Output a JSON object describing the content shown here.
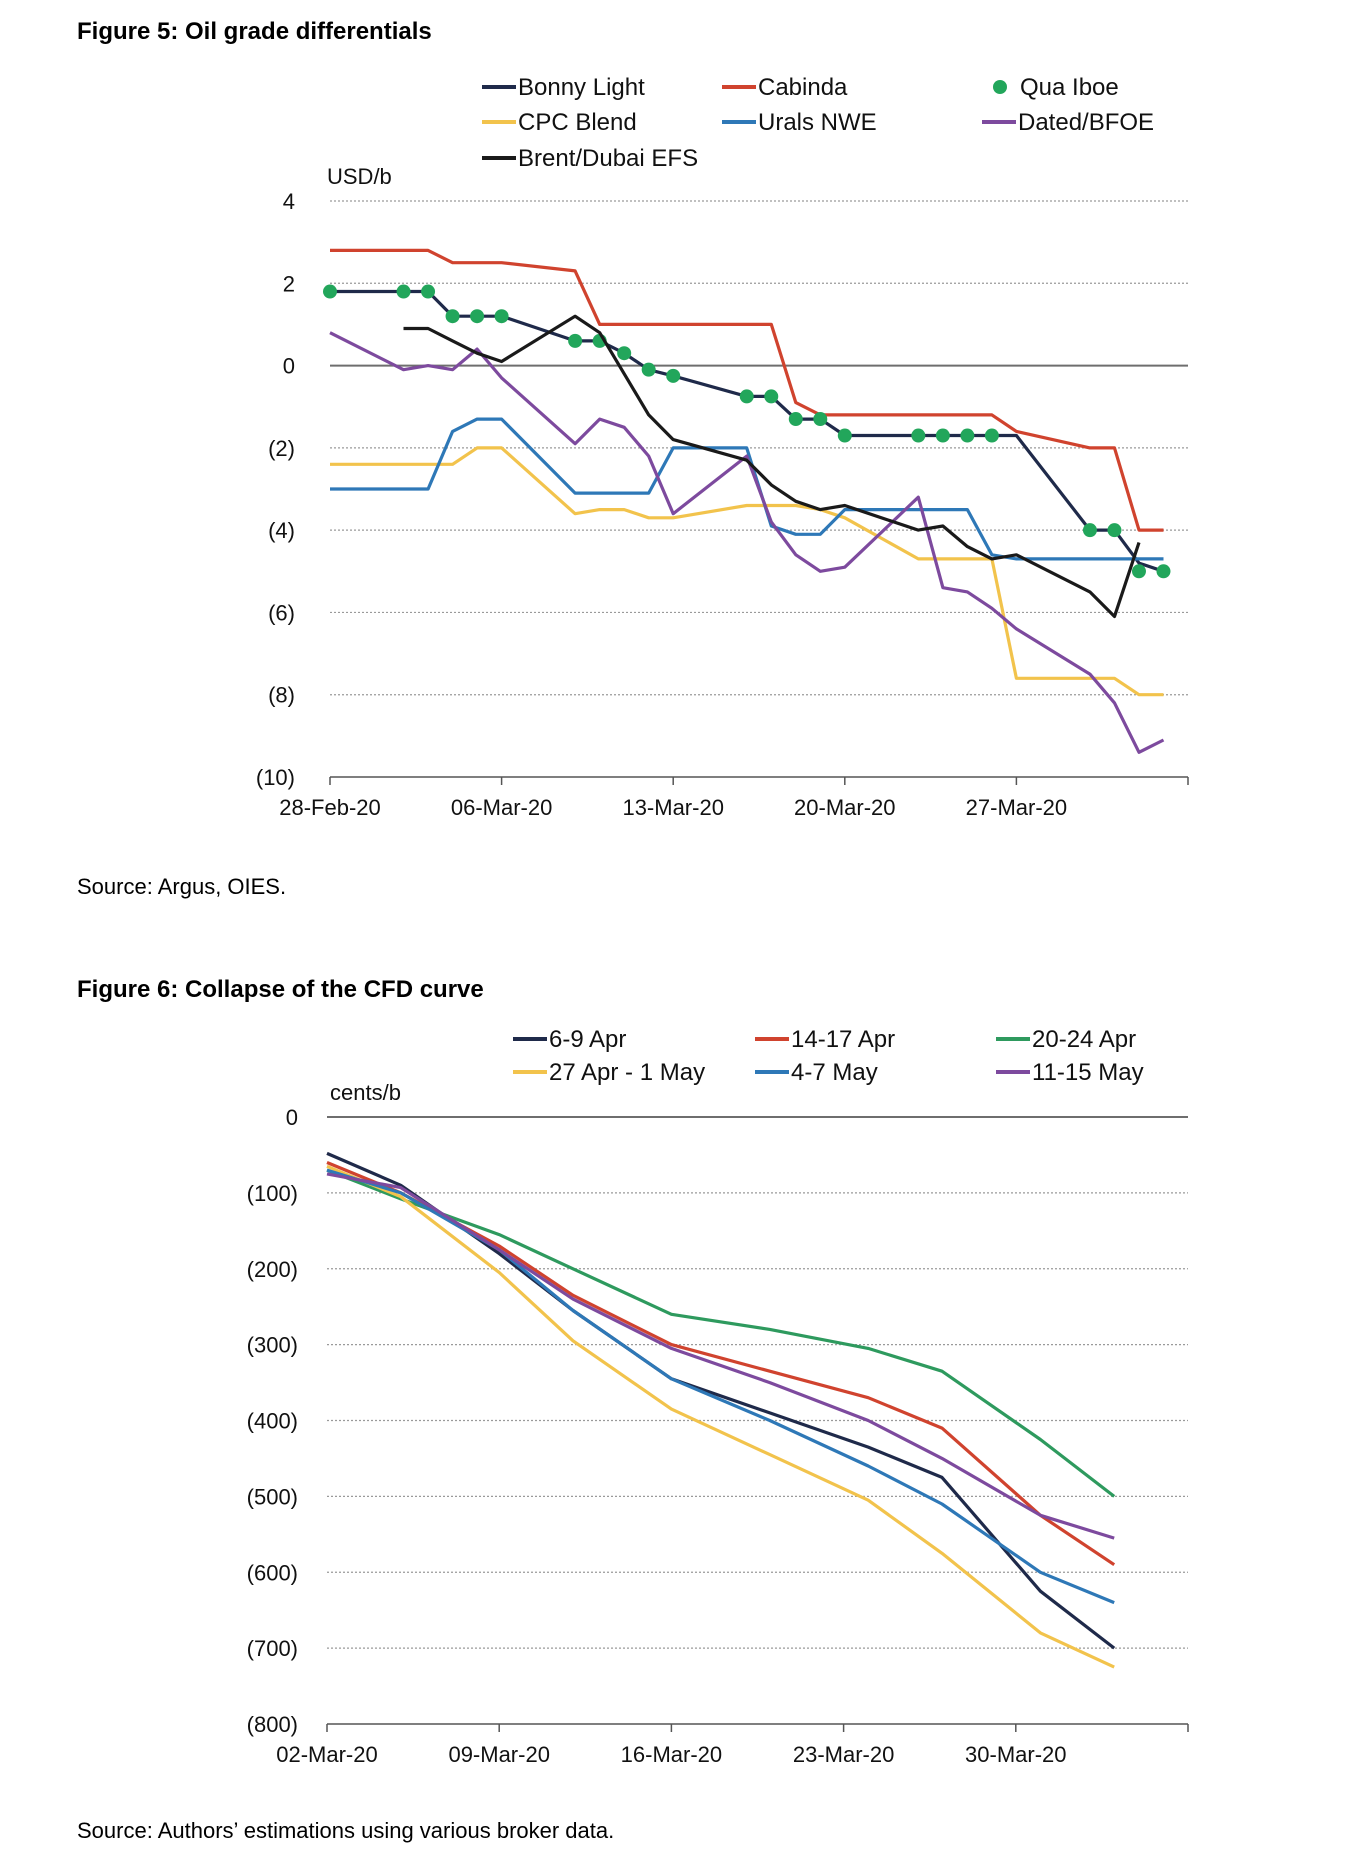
{
  "figures": [
    {
      "title": "Figure 5: Oil grade differentials",
      "source": "Source: Argus, OIES."
    },
    {
      "title": "Figure 6: Collapse of the CFD curve",
      "source": "Source: Authors’ estimations using various broker data."
    }
  ],
  "chart_data": [
    {
      "type": "line",
      "title": "Figure 5: Oil grade differentials",
      "ylabel": "USD/b",
      "ylim": [
        -10,
        4
      ],
      "y_ticks": [
        4,
        2,
        0,
        -2,
        -4,
        -6,
        -8,
        -10
      ],
      "y_tick_labels": [
        "4",
        "2",
        "0",
        "(2)",
        "(4)",
        "(6)",
        "(8)",
        "(10)"
      ],
      "x_ticks": [
        "2020-02-28",
        "2020-03-06",
        "2020-03-13",
        "2020-03-20",
        "2020-03-27"
      ],
      "x_tick_labels": [
        "28-Feb-20",
        "06-Mar-20",
        "13-Mar-20",
        "20-Mar-20",
        "27-Mar-20"
      ],
      "xlim": [
        "2020-02-28",
        "2020-04-03"
      ],
      "grid": "dotted horizontal",
      "legend": "top",
      "series": [
        {
          "name": "Bonny Light",
          "color": "#1f2a4a",
          "style": "line",
          "points": [
            [
              "2020-02-28",
              1.8
            ],
            [
              "2020-03-03",
              1.8
            ],
            [
              "2020-03-04",
              1.2
            ],
            [
              "2020-03-05",
              1.2
            ],
            [
              "2020-03-06",
              1.2
            ],
            [
              "2020-03-09",
              0.6
            ],
            [
              "2020-03-10",
              0.6
            ],
            [
              "2020-03-11",
              0.3
            ],
            [
              "2020-03-12",
              -0.1
            ],
            [
              "2020-03-13",
              -0.25
            ],
            [
              "2020-03-16",
              -0.75
            ],
            [
              "2020-03-17",
              -0.75
            ],
            [
              "2020-03-18",
              -1.3
            ],
            [
              "2020-03-19",
              -1.3
            ],
            [
              "2020-03-20",
              -1.7
            ],
            [
              "2020-03-23",
              -1.7
            ],
            [
              "2020-03-24",
              -1.7
            ],
            [
              "2020-03-25",
              -1.7
            ],
            [
              "2020-03-26",
              -1.7
            ],
            [
              "2020-03-27",
              -1.7
            ],
            [
              "2020-03-30",
              -4.0
            ],
            [
              "2020-03-31",
              -4.0
            ],
            [
              "2020-04-01",
              -4.8
            ],
            [
              "2020-04-02",
              -5.0
            ]
          ]
        },
        {
          "name": "Cabinda",
          "color": "#d0432e",
          "style": "line",
          "points": [
            [
              "2020-02-28",
              2.8
            ],
            [
              "2020-03-03",
              2.8
            ],
            [
              "2020-03-04",
              2.5
            ],
            [
              "2020-03-06",
              2.5
            ],
            [
              "2020-03-09",
              2.3
            ],
            [
              "2020-03-10",
              1.0
            ],
            [
              "2020-03-17",
              1.0
            ],
            [
              "2020-03-18",
              -0.9
            ],
            [
              "2020-03-19",
              -1.2
            ],
            [
              "2020-03-26",
              -1.2
            ],
            [
              "2020-03-27",
              -1.6
            ],
            [
              "2020-03-30",
              -2.0
            ],
            [
              "2020-03-31",
              -2.0
            ],
            [
              "2020-04-01",
              -4.0
            ],
            [
              "2020-04-02",
              -4.0
            ]
          ]
        },
        {
          "name": "Qua Iboe",
          "color": "#22a65b",
          "style": "markers",
          "points": [
            [
              "2020-02-28",
              1.8
            ],
            [
              "2020-03-02",
              1.8
            ],
            [
              "2020-03-03",
              1.8
            ],
            [
              "2020-03-04",
              1.2
            ],
            [
              "2020-03-05",
              1.2
            ],
            [
              "2020-03-06",
              1.2
            ],
            [
              "2020-03-09",
              0.6
            ],
            [
              "2020-03-10",
              0.6
            ],
            [
              "2020-03-11",
              0.3
            ],
            [
              "2020-03-12",
              -0.1
            ],
            [
              "2020-03-13",
              -0.25
            ],
            [
              "2020-03-16",
              -0.75
            ],
            [
              "2020-03-17",
              -0.75
            ],
            [
              "2020-03-18",
              -1.3
            ],
            [
              "2020-03-19",
              -1.3
            ],
            [
              "2020-03-20",
              -1.7
            ],
            [
              "2020-03-23",
              -1.7
            ],
            [
              "2020-03-24",
              -1.7
            ],
            [
              "2020-03-25",
              -1.7
            ],
            [
              "2020-03-26",
              -1.7
            ],
            [
              "2020-03-30",
              -4.0
            ],
            [
              "2020-03-31",
              -4.0
            ],
            [
              "2020-04-01",
              -5.0
            ],
            [
              "2020-04-02",
              -5.0
            ]
          ]
        },
        {
          "name": "CPC Blend",
          "color": "#f2c34c",
          "style": "line",
          "points": [
            [
              "2020-02-28",
              -2.4
            ],
            [
              "2020-03-03",
              -2.4
            ],
            [
              "2020-03-04",
              -2.4
            ],
            [
              "2020-03-05",
              -2.0
            ],
            [
              "2020-03-06",
              -2.0
            ],
            [
              "2020-03-09",
              -3.6
            ],
            [
              "2020-03-10",
              -3.5
            ],
            [
              "2020-03-11",
              -3.5
            ],
            [
              "2020-03-12",
              -3.7
            ],
            [
              "2020-03-13",
              -3.7
            ],
            [
              "2020-03-16",
              -3.4
            ],
            [
              "2020-03-17",
              -3.4
            ],
            [
              "2020-03-18",
              -3.4
            ],
            [
              "2020-03-19",
              -3.5
            ],
            [
              "2020-03-20",
              -3.7
            ],
            [
              "2020-03-23",
              -4.7
            ],
            [
              "2020-03-24",
              -4.7
            ],
            [
              "2020-03-25",
              -4.7
            ],
            [
              "2020-03-26",
              -4.7
            ],
            [
              "2020-03-27",
              -7.6
            ],
            [
              "2020-03-30",
              -7.6
            ],
            [
              "2020-03-31",
              -7.6
            ],
            [
              "2020-04-01",
              -8.0
            ],
            [
              "2020-04-02",
              -8.0
            ]
          ]
        },
        {
          "name": "Urals NWE",
          "color": "#2e78b7",
          "style": "line",
          "points": [
            [
              "2020-02-28",
              -3.0
            ],
            [
              "2020-03-03",
              -3.0
            ],
            [
              "2020-03-04",
              -1.6
            ],
            [
              "2020-03-05",
              -1.3
            ],
            [
              "2020-03-06",
              -1.3
            ],
            [
              "2020-03-09",
              -3.1
            ],
            [
              "2020-03-10",
              -3.1
            ],
            [
              "2020-03-11",
              -3.1
            ],
            [
              "2020-03-12",
              -3.1
            ],
            [
              "2020-03-13",
              -2.0
            ],
            [
              "2020-03-16",
              -2.0
            ],
            [
              "2020-03-17",
              -3.9
            ],
            [
              "2020-03-18",
              -4.1
            ],
            [
              "2020-03-19",
              -4.1
            ],
            [
              "2020-03-20",
              -3.5
            ],
            [
              "2020-03-23",
              -3.5
            ],
            [
              "2020-03-24",
              -3.5
            ],
            [
              "2020-03-25",
              -3.5
            ],
            [
              "2020-03-26",
              -4.6
            ],
            [
              "2020-03-27",
              -4.7
            ],
            [
              "2020-03-30",
              -4.7
            ],
            [
              "2020-03-31",
              -4.7
            ],
            [
              "2020-04-01",
              -4.7
            ],
            [
              "2020-04-02",
              -4.7
            ]
          ]
        },
        {
          "name": "Dated/BFOE",
          "color": "#7d4a9e",
          "style": "line",
          "points": [
            [
              "2020-02-28",
              0.8
            ],
            [
              "2020-03-02",
              -0.1
            ],
            [
              "2020-03-03",
              0.0
            ],
            [
              "2020-03-04",
              -0.1
            ],
            [
              "2020-03-05",
              0.4
            ],
            [
              "2020-03-06",
              -0.3
            ],
            [
              "2020-03-09",
              -1.9
            ],
            [
              "2020-03-10",
              -1.3
            ],
            [
              "2020-03-11",
              -1.5
            ],
            [
              "2020-03-12",
              -2.2
            ],
            [
              "2020-03-13",
              -3.6
            ],
            [
              "2020-03-16",
              -2.2
            ],
            [
              "2020-03-17",
              -3.8
            ],
            [
              "2020-03-18",
              -4.6
            ],
            [
              "2020-03-19",
              -5.0
            ],
            [
              "2020-03-20",
              -4.9
            ],
            [
              "2020-03-23",
              -3.2
            ],
            [
              "2020-03-24",
              -5.4
            ],
            [
              "2020-03-25",
              -5.5
            ],
            [
              "2020-03-26",
              -5.9
            ],
            [
              "2020-03-27",
              -6.4
            ],
            [
              "2020-03-30",
              -7.5
            ],
            [
              "2020-03-31",
              -8.2
            ],
            [
              "2020-04-01",
              -9.4
            ],
            [
              "2020-04-02",
              -9.1
            ]
          ]
        },
        {
          "name": "Brent/Dubai EFS",
          "color": "#1a1a1a",
          "style": "line",
          "points": [
            [
              "2020-03-02",
              0.9
            ],
            [
              "2020-03-03",
              0.9
            ],
            [
              "2020-03-04",
              0.6
            ],
            [
              "2020-03-05",
              0.3
            ],
            [
              "2020-03-06",
              0.1
            ],
            [
              "2020-03-09",
              1.2
            ],
            [
              "2020-03-10",
              0.8
            ],
            [
              "2020-03-11",
              -0.2
            ],
            [
              "2020-03-12",
              -1.2
            ],
            [
              "2020-03-13",
              -1.8
            ],
            [
              "2020-03-16",
              -2.3
            ],
            [
              "2020-03-17",
              -2.9
            ],
            [
              "2020-03-18",
              -3.3
            ],
            [
              "2020-03-19",
              -3.5
            ],
            [
              "2020-03-20",
              -3.4
            ],
            [
              "2020-03-23",
              -4.0
            ],
            [
              "2020-03-24",
              -3.9
            ],
            [
              "2020-03-25",
              -4.4
            ],
            [
              "2020-03-26",
              -4.7
            ],
            [
              "2020-03-27",
              -4.6
            ],
            [
              "2020-03-30",
              -5.5
            ],
            [
              "2020-03-31",
              -6.1
            ],
            [
              "2020-04-01",
              -4.3
            ]
          ]
        }
      ]
    },
    {
      "type": "line",
      "title": "Figure 6: Collapse of the CFD curve",
      "ylabel": "cents/b",
      "ylim": [
        -800,
        0
      ],
      "y_ticks": [
        0,
        -100,
        -200,
        -300,
        -400,
        -500,
        -600,
        -700,
        -800
      ],
      "y_tick_labels": [
        "0",
        "(100)",
        "(200)",
        "(300)",
        "(400)",
        "(500)",
        "(600)",
        "(700)",
        "(800)"
      ],
      "x_ticks": [
        "2020-03-02",
        "2020-03-09",
        "2020-03-16",
        "2020-03-23",
        "2020-03-30"
      ],
      "x_tick_labels": [
        "02-Mar-20",
        "09-Mar-20",
        "16-Mar-20",
        "23-Mar-20",
        "30-Mar-20"
      ],
      "xlim": [
        "2020-03-02",
        "2020-04-06"
      ],
      "grid": "dotted horizontal",
      "legend": "top",
      "x": [
        "2020-03-02",
        "2020-03-05",
        "2020-03-09",
        "2020-03-12",
        "2020-03-16",
        "2020-03-20",
        "2020-03-24",
        "2020-03-27",
        "2020-03-31",
        "2020-04-03"
      ],
      "series": [
        {
          "name": "6-9 Apr",
          "color": "#1f2a4a",
          "values": [
            -48,
            -90,
            -180,
            -255,
            -345,
            -390,
            -435,
            -475,
            -625,
            -700
          ]
        },
        {
          "name": "14-17 Apr",
          "color": "#d0432e",
          "values": [
            -60,
            -100,
            -170,
            -235,
            -300,
            -335,
            -370,
            -410,
            -525,
            -590
          ]
        },
        {
          "name": "20-24 Apr",
          "color": "#2e9a5e",
          "values": [
            -70,
            -108,
            -155,
            -200,
            -260,
            -280,
            -305,
            -335,
            -425,
            -500
          ]
        },
        {
          "name": "27 Apr - 1 May",
          "color": "#f2c34c",
          "values": [
            -65,
            -105,
            -205,
            -295,
            -385,
            -445,
            -505,
            -575,
            -680,
            -725
          ]
        },
        {
          "name": "4-7 May",
          "color": "#2e78b7",
          "values": [
            -70,
            -100,
            -175,
            -255,
            -345,
            -400,
            -460,
            -510,
            -600,
            -640
          ]
        },
        {
          "name": "11-15 May",
          "color": "#7d4a9e",
          "values": [
            -75,
            -93,
            -175,
            -240,
            -305,
            -350,
            -400,
            -450,
            -525,
            -555
          ]
        }
      ]
    }
  ]
}
